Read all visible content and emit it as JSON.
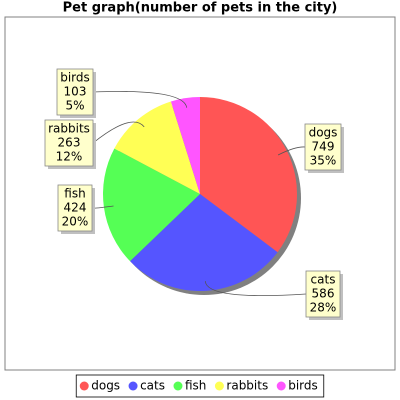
{
  "chart_data": {
    "type": "pie",
    "title": "Pet graph(number of pets in the city)",
    "categories": [
      "dogs",
      "cats",
      "fish",
      "rabbits",
      "birds"
    ],
    "values": [
      749,
      586,
      424,
      263,
      103
    ],
    "percent_labels": [
      "35%",
      "28%",
      "20%",
      "12%",
      "5%"
    ],
    "colors": [
      "#ff5555",
      "#5555ff",
      "#55ff55",
      "#ffff55",
      "#ff55ff"
    ],
    "legend": "bottom"
  }
}
